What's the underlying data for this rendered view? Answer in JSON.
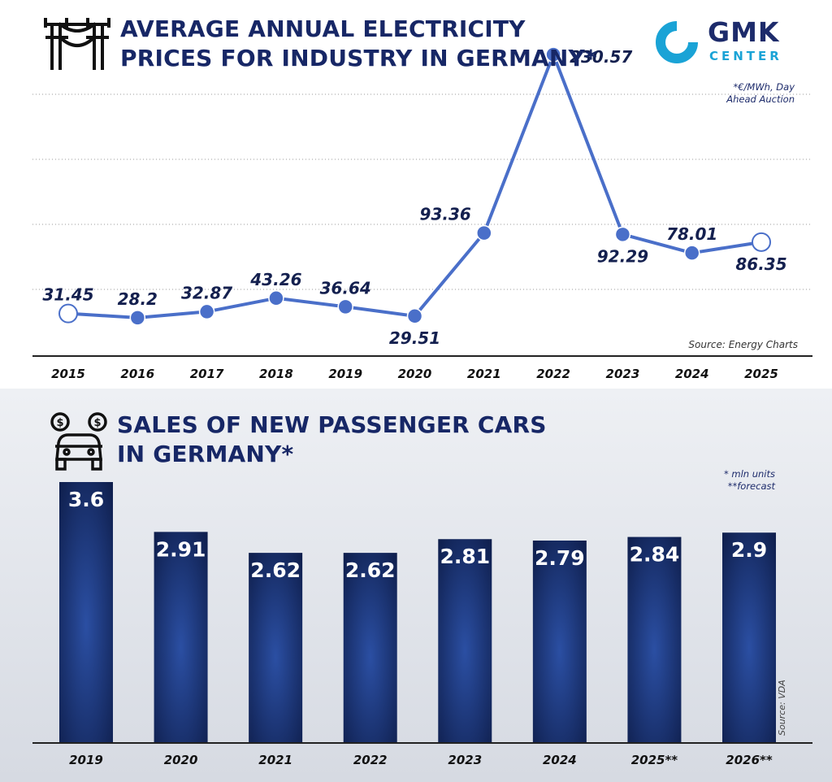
{
  "top": {
    "title_lines": [
      "AVERAGE ANNUAL ELECTRICITY",
      "PRICES FOR INDUSTRY IN GERMANY*"
    ],
    "note_lines": [
      "*€/MWh, Day",
      "Ahead Auction"
    ],
    "source": "Source: Energy Charts",
    "logo": {
      "main": "GMK",
      "sub": "CENTER"
    }
  },
  "bottom": {
    "title_lines": [
      "SALES OF NEW PASSENGER CARS",
      "IN GERMANY*"
    ],
    "note_lines": [
      "* mln units",
      "**forecast"
    ],
    "source": "Source: VDA"
  },
  "colors": {
    "title": "#172766",
    "line": "#4a6fc9",
    "point": "#4a6fc9",
    "bar_dark": "#0e1d4a",
    "bar_light": "#2b4fa3",
    "logo_ring": "#1aa3d6"
  },
  "icons": [
    "power-pylon-icon",
    "car-with-coins-icon",
    "gmk-logo-icon"
  ],
  "chart_data": [
    {
      "type": "line",
      "title": "AVERAGE ANNUAL ELECTRICITY PRICES FOR INDUSTRY IN GERMANY*",
      "x": [
        "2015",
        "2016",
        "2017",
        "2018",
        "2019",
        "2020",
        "2021",
        "2022",
        "2023",
        "2024",
        "2025"
      ],
      "series": [
        {
          "values": [
            31.45,
            28.2,
            32.87,
            43.26,
            36.64,
            29.51,
            93.36,
            230.57,
            92.29,
            78.01,
            86.35
          ]
        }
      ],
      "labels": [
        "31.45",
        "28.2",
        "32.87",
        "43.26",
        "36.64",
        "29.51",
        "93.36",
        "230.57",
        "92.29",
        "78.01",
        "86.35"
      ],
      "ylim": [
        0,
        250
      ],
      "grid": true,
      "grid_style": "dotted",
      "open_markers": [
        "2015",
        "2025"
      ]
    },
    {
      "type": "bar",
      "title": "SALES OF NEW PASSENGER CARS IN GERMANY*",
      "categories": [
        "2019",
        "2020",
        "2021",
        "2022",
        "2023",
        "2024",
        "2025**",
        "2026**"
      ],
      "values": [
        3.6,
        2.91,
        2.62,
        2.62,
        2.81,
        2.79,
        2.84,
        2.9
      ],
      "labels": [
        "3.6",
        "2.91",
        "2.62",
        "2.62",
        "2.81",
        "2.79",
        "2.84",
        "2.9"
      ],
      "ylim": [
        0,
        3.6
      ]
    }
  ]
}
